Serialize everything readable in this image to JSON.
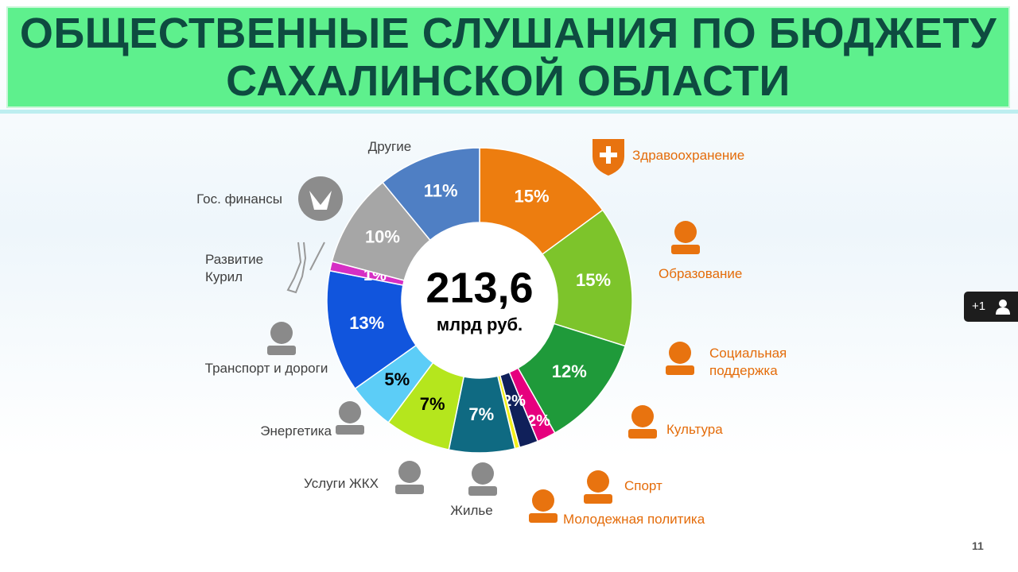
{
  "header": {
    "title": "ОБЩЕСТВЕННЫЕ СЛУШАНИЯ ПО БЮДЖЕТУ САХАЛИНСКОЙ ОБЛАСТИ"
  },
  "chart_data": {
    "type": "donut",
    "center_text": "213,6",
    "center_unit": "млрд руб.",
    "categories": [
      "Здравоохранение",
      "Образование",
      "Социальная поддержка",
      "Культура",
      "Спорт",
      "Молодежная политика",
      "Жилье",
      "Услуги ЖКХ",
      "Энергетика",
      "Транспорт и дороги",
      "Развитие Курил",
      "Гос. финансы",
      "Другие"
    ],
    "values": [
      15,
      15,
      12,
      2,
      2,
      0.5,
      7,
      7,
      5,
      13,
      1,
      10,
      11
    ],
    "value_labels": [
      "15%",
      "15%",
      "12%",
      "2%",
      "2%",
      null,
      "7%",
      "7%",
      "5%",
      "13%",
      "1%",
      "10%",
      "11%"
    ],
    "colors": [
      "#ed7d0f",
      "#7dc42b",
      "#1f9a3a",
      "#e6007e",
      "#10205a",
      "#f4f01a",
      "#0f6a82",
      "#b5e61d",
      "#5ccdf7",
      "#1155dd",
      "#d62fc4",
      "#a6a6a6",
      "#4f7fc4"
    ]
  },
  "page_number": "11",
  "badge": "+1"
}
